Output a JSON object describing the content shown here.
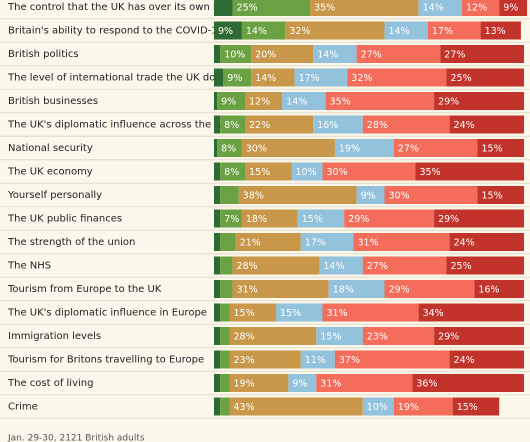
{
  "chart_data": {
    "type": "stacked-bar",
    "categories": [
      "The control that the UK has over its own laws",
      "Britain's ability to respond to the COVID-19 pandemic",
      "British politics",
      "The level of international trade the UK does",
      "British businesses",
      "The UK's diplomatic influence across the wider world",
      "National security",
      "The UK economy",
      "Yourself personally",
      "The UK public finances",
      "The strength of the union",
      "The NHS",
      "Tourism from Europe to the UK",
      "The UK's diplomatic influence in Europe",
      "Immigration levels",
      "Tourism for Britons travelling to Europe",
      "The cost of living",
      "Crime"
    ],
    "series": [
      {
        "color": "#2e6b34",
        "values": [
          6,
          9,
          2,
          3,
          1,
          2,
          1,
          2,
          2,
          2,
          2,
          2,
          2,
          2,
          2,
          2,
          2,
          2
        ],
        "value_labels": [
          null,
          "9%",
          null,
          null,
          null,
          null,
          null,
          null,
          null,
          null,
          null,
          null,
          null,
          null,
          null,
          null,
          null,
          null
        ]
      },
      {
        "color": "#6aa142",
        "values": [
          25,
          14,
          10,
          9,
          9,
          8,
          8,
          8,
          6,
          7,
          5,
          4,
          4,
          3,
          3,
          3,
          3,
          3
        ],
        "value_labels": [
          "25%",
          "14%",
          "10%",
          "9%",
          "9%",
          "8%",
          "8%",
          "8%",
          null,
          "7%",
          null,
          null,
          null,
          null,
          null,
          null,
          null,
          null
        ]
      },
      {
        "color": "#c9974a",
        "values": [
          35,
          32,
          20,
          14,
          12,
          22,
          30,
          15,
          38,
          18,
          21,
          28,
          31,
          15,
          28,
          23,
          19,
          43
        ],
        "value_labels": [
          "35%",
          "32%",
          "20%",
          "14%",
          "12%",
          "22%",
          "30%",
          "15%",
          "38%",
          "18%",
          "21%",
          "28%",
          "31%",
          "15%",
          "28%",
          "23%",
          "19%",
          "43%"
        ]
      },
      {
        "color": "#92c2dc",
        "values": [
          14,
          14,
          14,
          17,
          14,
          16,
          19,
          10,
          9,
          15,
          17,
          14,
          18,
          15,
          15,
          11,
          9,
          10
        ],
        "value_labels": [
          "14%",
          "14%",
          "14%",
          "17%",
          "14%",
          "16%",
          "19%",
          "10%",
          "9%",
          "15%",
          "17%",
          "14%",
          "18%",
          "15%",
          "15%",
          "11%",
          "9%",
          "10%"
        ]
      },
      {
        "color": "#f46d5a",
        "values": [
          12,
          17,
          27,
          32,
          35,
          28,
          27,
          30,
          30,
          29,
          31,
          27,
          29,
          31,
          23,
          37,
          31,
          19
        ],
        "value_labels": [
          "12%",
          "17%",
          "27%",
          "32%",
          "35%",
          "28%",
          "27%",
          "30%",
          "30%",
          "29%",
          "31%",
          "27%",
          "29%",
          "31%",
          "23%",
          "37%",
          "31%",
          "19%"
        ]
      },
      {
        "color": "#c1332b",
        "values": [
          9,
          13,
          27,
          25,
          29,
          24,
          15,
          35,
          15,
          29,
          24,
          25,
          16,
          34,
          29,
          24,
          36,
          15
        ],
        "value_labels": [
          "9%",
          "13%",
          "27%",
          "25%",
          "29%",
          "24%",
          "15%",
          "35%",
          "15%",
          "29%",
          "24%",
          "25%",
          "16%",
          "34%",
          "29%",
          "24%",
          "36%",
          "15%"
        ]
      }
    ],
    "note": "Jan. 29-30, 2121 British adults"
  }
}
